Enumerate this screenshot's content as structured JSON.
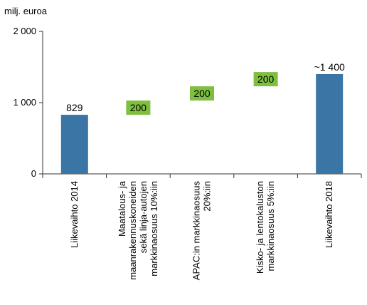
{
  "chart_data": {
    "type": "bar",
    "unit_label": "milj. euroa",
    "yticks": [
      0,
      1000,
      2000
    ],
    "ytick_labels": [
      "0",
      "1 000",
      "2 000"
    ],
    "ylim": [
      0,
      2000
    ],
    "categories": [
      [
        "Liikevaihto 2014"
      ],
      [
        "Maatalous- ja",
        "maanrakennuskoneiden",
        "sekä linja-autojen",
        "markkinaosuus 10%:iin"
      ],
      [
        "APAC:in markkinaosuus",
        "20%:iin"
      ],
      [
        "Kisko- ja lentokaluston",
        "markkinaosuus 5%:iin"
      ],
      [
        "Liikevaihto 2018"
      ]
    ],
    "bars": [
      {
        "kind": "total",
        "value": 829,
        "label": "829"
      },
      {
        "kind": "increment",
        "value": 200,
        "label": "200",
        "base": 829
      },
      {
        "kind": "increment",
        "value": 200,
        "label": "200",
        "base": 1029
      },
      {
        "kind": "increment",
        "value": 200,
        "label": "200",
        "base": 1229
      },
      {
        "kind": "total",
        "value": 1400,
        "label": "~1 400"
      }
    ],
    "colors": {
      "total": "#3b75a5",
      "increment_badge": "#7fbf3f",
      "axis": "#333333"
    },
    "grid": false,
    "legend": "none"
  }
}
